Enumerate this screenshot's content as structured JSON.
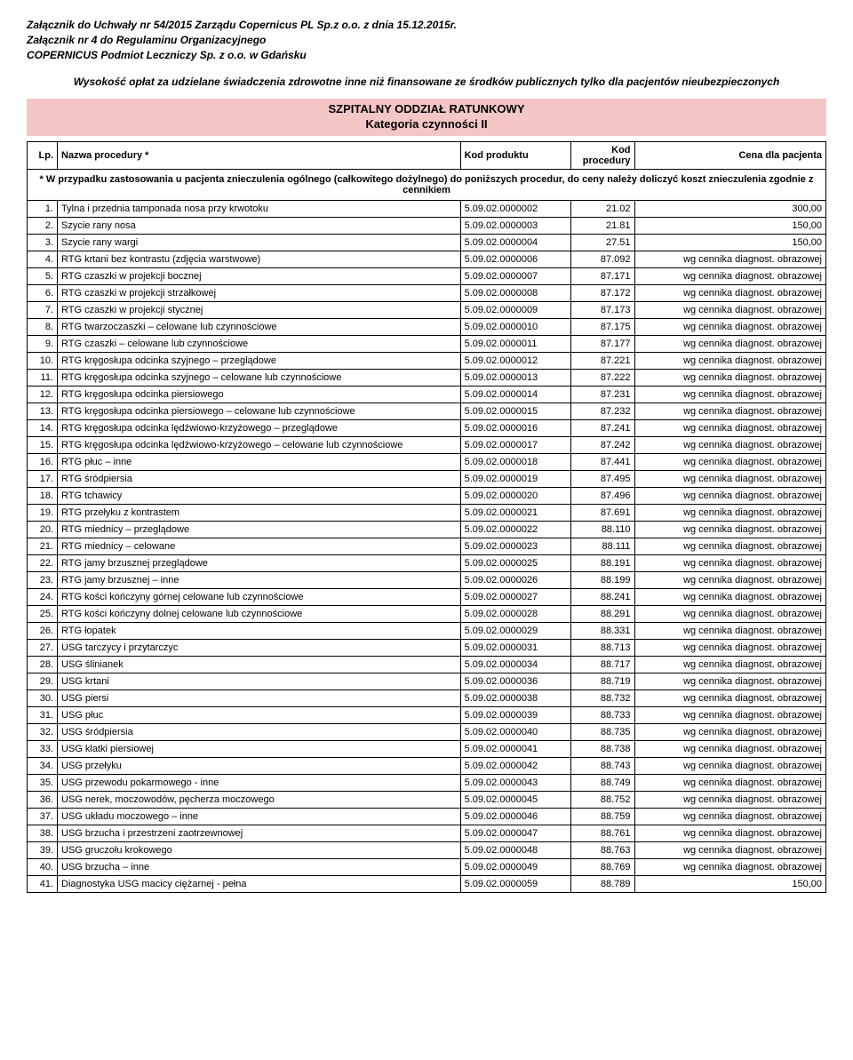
{
  "header": {
    "line1": "Załącznik do Uchwały nr 54/2015 Zarządu Copernicus PL Sp.z o.o. z dnia 15.12.2015r.",
    "line2": "Załącznik nr 4 do Regulaminu Organizacyjnego",
    "line3": "COPERNICUS  Podmiot Leczniczy Sp. z o.o. w Gdańsku",
    "intro": "Wysokość opłat za udzielane świadczenia zdrowotne inne niż finansowane ze środków publicznych tylko dla pacjentów nieubezpieczonych"
  },
  "section": {
    "title_l1": "SZPITALNY ODDZIAŁ RATUNKOWY",
    "title_l2": "Kategoria czynności  II"
  },
  "columns": {
    "lp": "Lp.",
    "name": "Nazwa procedury *",
    "prod": "Kod produktu",
    "proc": "Kod procedury",
    "price": "Cena dla pacjenta"
  },
  "note": "* W przypadku zastosowania u pacjenta znieczulenia ogólnego (całkowitego dożylnego) do poniższych procedur, do ceny należy doliczyć koszt znieczulenia zgodnie z cennikiem",
  "price_text": "wg cennika diagnost. obrazowej",
  "rows": [
    {
      "lp": "1.",
      "name": "Tylna i przednia tamponada nosa przy krwotoku",
      "prod": "5.09.02.0000002",
      "proc": "21.02",
      "price": "300,00"
    },
    {
      "lp": "2.",
      "name": "Szycie rany nosa",
      "prod": "5.09.02.0000003",
      "proc": "21.81",
      "price": "150,00"
    },
    {
      "lp": "3.",
      "name": "Szycie rany wargi",
      "prod": "5.09.02.0000004",
      "proc": "27.51",
      "price": "150,00"
    },
    {
      "lp": "4.",
      "name": "RTG krtani bez kontrastu (zdjęcia warstwowe)",
      "prod": "5.09.02.0000006",
      "proc": "87.092",
      "price_ref": true
    },
    {
      "lp": "5.",
      "name": "RTG czaszki w projekcji bocznej",
      "prod": "5.09.02.0000007",
      "proc": "87.171",
      "price_ref": true
    },
    {
      "lp": "6.",
      "name": "RTG czaszki w projekcji strzałkowej",
      "prod": "5.09.02.0000008",
      "proc": "87.172",
      "price_ref": true
    },
    {
      "lp": "7.",
      "name": "RTG czaszki w projekcji stycznej",
      "prod": "5.09.02.0000009",
      "proc": "87.173",
      "price_ref": true
    },
    {
      "lp": "8.",
      "name": "RTG twarzoczaszki – celowane lub czynnościowe",
      "prod": "5.09.02.0000010",
      "proc": "87.175",
      "price_ref": true
    },
    {
      "lp": "9.",
      "name": "RTG czaszki – celowane lub czynnościowe",
      "prod": "5.09.02.0000011",
      "proc": "87.177",
      "price_ref": true
    },
    {
      "lp": "10.",
      "name": "RTG kręgosłupa odcinka szyjnego – przeglądowe",
      "prod": "5.09.02.0000012",
      "proc": "87.221",
      "price_ref": true
    },
    {
      "lp": "11.",
      "name": "RTG kręgosłupa odcinka szyjnego – celowane lub czynnościowe",
      "prod": "5.09.02.0000013",
      "proc": "87.222",
      "price_ref": true
    },
    {
      "lp": "12.",
      "name": "RTG kręgosłupa odcinka piersiowego",
      "prod": "5.09.02.0000014",
      "proc": "87.231",
      "price_ref": true
    },
    {
      "lp": "13.",
      "name": "RTG kręgosłupa odcinka piersiowego – celowane lub czynnościowe",
      "prod": "5.09.02.0000015",
      "proc": "87.232",
      "price_ref": true
    },
    {
      "lp": "14.",
      "name": "RTG kręgosłupa odcinka lędźwiowo-krzyżowego – przeglądowe",
      "prod": "5.09.02.0000016",
      "proc": "87.241",
      "price_ref": true
    },
    {
      "lp": "15.",
      "name": "RTG kręgosłupa odcinka lędźwiowo-krzyżowego – celowane lub czynnościowe",
      "prod": "5.09.02.0000017",
      "proc": "87.242",
      "price_ref": true
    },
    {
      "lp": "16.",
      "name": "RTG płuc – inne",
      "prod": "5.09.02.0000018",
      "proc": "87.441",
      "price_ref": true
    },
    {
      "lp": "17.",
      "name": "RTG śródpiersia",
      "prod": "5.09.02.0000019",
      "proc": "87.495",
      "price_ref": true
    },
    {
      "lp": "18.",
      "name": "RTG tchawicy",
      "prod": "5.09.02.0000020",
      "proc": "87.496",
      "price_ref": true
    },
    {
      "lp": "19.",
      "name": "RTG przełyku z kontrastem",
      "prod": "5.09.02.0000021",
      "proc": "87.691",
      "price_ref": true
    },
    {
      "lp": "20.",
      "name": "RTG miednicy – przeglądowe",
      "prod": "5.09.02.0000022",
      "proc": "88.110",
      "price_ref": true
    },
    {
      "lp": "21.",
      "name": "RTG miednicy – celowane",
      "prod": "5.09.02.0000023",
      "proc": "88.111",
      "price_ref": true
    },
    {
      "lp": "22.",
      "name": "RTG jamy brzusznej przeglądowe",
      "prod": "5.09.02.0000025",
      "proc": "88.191",
      "price_ref": true
    },
    {
      "lp": "23.",
      "name": "RTG jamy brzusznej – inne",
      "prod": "5.09.02.0000026",
      "proc": "88.199",
      "price_ref": true
    },
    {
      "lp": "24.",
      "name": "RTG kości kończyny górnej celowane lub czynnościowe",
      "prod": "5.09.02.0000027",
      "proc": "88.241",
      "price_ref": true
    },
    {
      "lp": "25.",
      "name": "RTG kości kończyny dolnej celowane lub czynnościowe",
      "prod": "5.09.02.0000028",
      "proc": "88.291",
      "price_ref": true
    },
    {
      "lp": "26.",
      "name": "RTG łopatek",
      "prod": "5.09.02.0000029",
      "proc": "88.331",
      "price_ref": true
    },
    {
      "lp": "27.",
      "name": "USG tarczycy i przytarczyc",
      "prod": "5.09.02.0000031",
      "proc": "88.713",
      "price_ref": true
    },
    {
      "lp": "28.",
      "name": "USG ślinianek",
      "prod": "5.09.02.0000034",
      "proc": "88.717",
      "price_ref": true
    },
    {
      "lp": "29.",
      "name": "USG krtani",
      "prod": "5.09.02.0000036",
      "proc": "88.719",
      "price_ref": true
    },
    {
      "lp": "30.",
      "name": "USG piersi",
      "prod": "5.09.02.0000038",
      "proc": "88.732",
      "price_ref": true
    },
    {
      "lp": "31.",
      "name": "USG płuc",
      "prod": "5.09.02.0000039",
      "proc": "88.733",
      "price_ref": true
    },
    {
      "lp": "32.",
      "name": "USG śródpiersia",
      "prod": "5.09.02.0000040",
      "proc": "88.735",
      "price_ref": true
    },
    {
      "lp": "33.",
      "name": "USG klatki piersiowej",
      "prod": "5.09.02.0000041",
      "proc": "88.738",
      "price_ref": true
    },
    {
      "lp": "34.",
      "name": "USG przełyku",
      "prod": "5.09.02.0000042",
      "proc": "88.743",
      "price_ref": true
    },
    {
      "lp": "35.",
      "name": "USG przewodu pokarmowego - inne",
      "prod": "5.09.02.0000043",
      "proc": "88.749",
      "price_ref": true
    },
    {
      "lp": "36.",
      "name": "USG nerek, moczowodów, pęcherza moczowego",
      "prod": "5.09.02.0000045",
      "proc": "88.752",
      "price_ref": true
    },
    {
      "lp": "37.",
      "name": "USG układu moczowego – inne",
      "prod": "5.09.02.0000046",
      "proc": "88.759",
      "price_ref": true
    },
    {
      "lp": "38.",
      "name": "USG brzucha i przestrzeni zaotrzewnowej",
      "prod": "5.09.02.0000047",
      "proc": "88.761",
      "price_ref": true
    },
    {
      "lp": "39.",
      "name": "USG gruczołu krokowego",
      "prod": "5.09.02.0000048",
      "proc": "88.763",
      "price_ref": true
    },
    {
      "lp": "40.",
      "name": "USG brzucha – inne",
      "prod": "5.09.02.0000049",
      "proc": "88.769",
      "price_ref": true
    },
    {
      "lp": "41.",
      "name": "Diagnostyka USG macicy ciężarnej - pełna",
      "prod": "5.09.02.0000059",
      "proc": "88.789",
      "price": "150,00"
    }
  ]
}
